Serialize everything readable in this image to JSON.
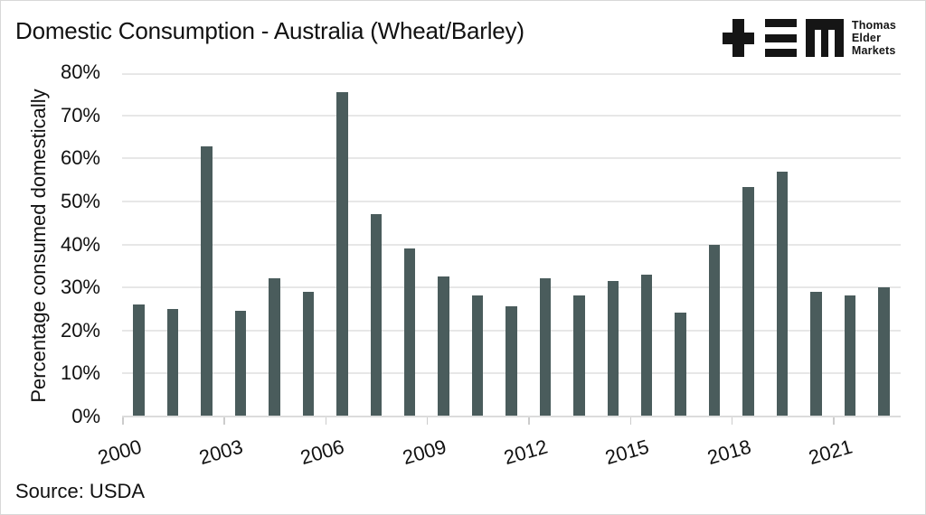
{
  "logo": {
    "lines": [
      "Thomas",
      "Elder",
      "Markets"
    ]
  },
  "chart_data": {
    "type": "bar",
    "title": "Domestic Consumption - Australia (Wheat/Barley)",
    "source_label": "Source: USDA",
    "ylabel": "Percentage consumed domestically",
    "xlabel": "",
    "ylim": [
      0,
      80
    ],
    "ytick_step": 10,
    "ytick_suffix": "%",
    "grid": true,
    "legend": "none",
    "bar_color": "#4a5c5c",
    "x_label_every": 3,
    "x_label_rotation_deg": -16,
    "categories": [
      "2000",
      "2001",
      "2002",
      "2003",
      "2004",
      "2005",
      "2006",
      "2007",
      "2008",
      "2009",
      "2010",
      "2011",
      "2012",
      "2013",
      "2014",
      "2015",
      "2016",
      "2017",
      "2018",
      "2019",
      "2020",
      "2021",
      "2022"
    ],
    "values": [
      26,
      25,
      63,
      24.5,
      32,
      29,
      75.5,
      47,
      39,
      32.5,
      28,
      25.5,
      32,
      28,
      31.5,
      33,
      24,
      40,
      53.5,
      57,
      29,
      28,
      30
    ]
  }
}
